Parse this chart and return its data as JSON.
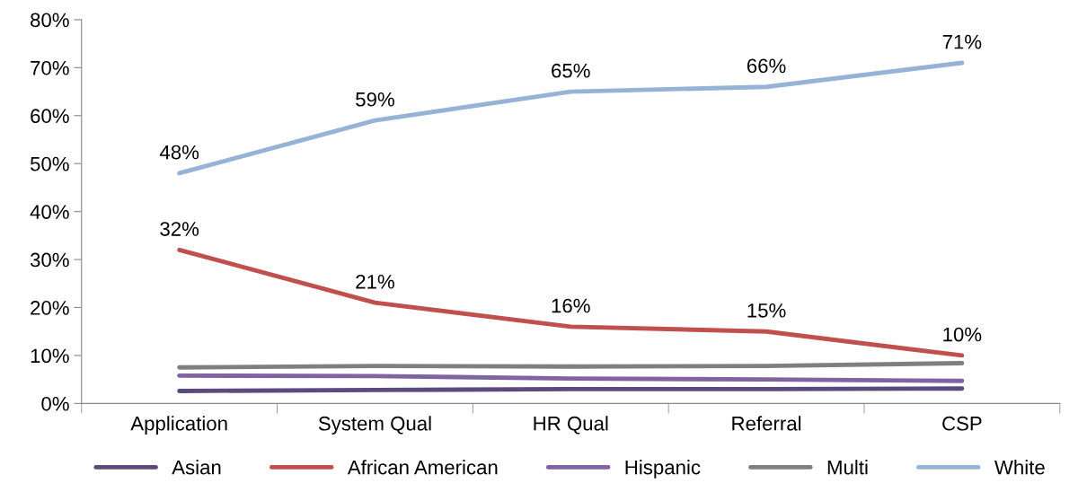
{
  "chart_data": {
    "type": "line",
    "categories": [
      "Application",
      "System Qual",
      "HR Qual",
      "Referral",
      "CSP"
    ],
    "series": [
      {
        "name": "Asian",
        "color": "#5b4a7e",
        "values": [
          2.6,
          2.8,
          3.0,
          3.0,
          3.1
        ]
      },
      {
        "name": "African American",
        "color": "#c0504d",
        "values": [
          32,
          21,
          16,
          15,
          10
        ],
        "value_labels": [
          "32%",
          "21%",
          "16%",
          "15%",
          "10%"
        ]
      },
      {
        "name": "Hispanic",
        "color": "#8064a2",
        "values": [
          5.8,
          5.7,
          5.2,
          5.0,
          4.7
        ]
      },
      {
        "name": "Multi",
        "color": "#7f7f7f",
        "values": [
          7.5,
          7.8,
          7.7,
          7.8,
          8.4
        ]
      },
      {
        "name": "White",
        "color": "#95b3d7",
        "values": [
          48,
          59,
          65,
          66,
          71
        ],
        "value_labels": [
          "48%",
          "59%",
          "65%",
          "66%",
          "71%"
        ]
      }
    ],
    "ylim": [
      0,
      80
    ],
    "yticks": [
      {
        "value": 0,
        "label": "0%"
      },
      {
        "value": 10,
        "label": "10%"
      },
      {
        "value": 20,
        "label": "20%"
      },
      {
        "value": 30,
        "label": "30%"
      },
      {
        "value": 40,
        "label": "40%"
      },
      {
        "value": 50,
        "label": "50%"
      },
      {
        "value": 60,
        "label": "60%"
      },
      {
        "value": 70,
        "label": "70%"
      },
      {
        "value": 80,
        "label": "80%"
      }
    ],
    "grid": false,
    "legend": "bottom",
    "marker": "none",
    "line_style": "solid"
  }
}
